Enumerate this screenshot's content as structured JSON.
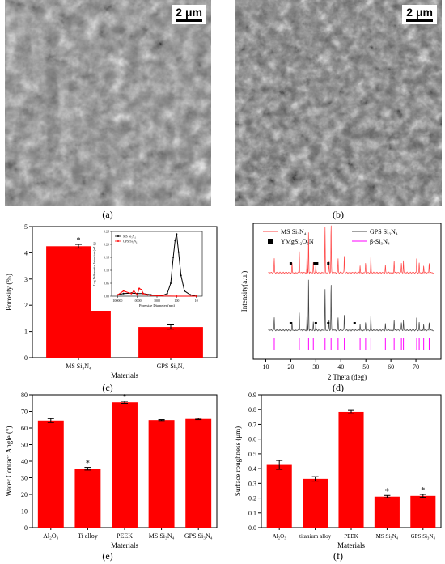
{
  "panels": {
    "a": {
      "label": "(a)",
      "scale_bar": "2 μm"
    },
    "b": {
      "label": "(b)",
      "scale_bar": "2 μm"
    },
    "c": {
      "label": "(c)"
    },
    "d": {
      "label": "(d)"
    },
    "e": {
      "label": "(e)"
    },
    "f": {
      "label": "(f)"
    }
  },
  "chart_data": [
    {
      "id": "c",
      "type": "bar",
      "categories": [
        "MS Si₃N₄",
        "GPS Si₃N₄"
      ],
      "values": [
        4.25,
        1.17
      ],
      "errors": [
        0.07,
        0.08
      ],
      "significance": [
        "*",
        ""
      ],
      "xlabel": "Materials",
      "ylabel": "Porosity (%)",
      "ylim": [
        0,
        5
      ],
      "yticks": [
        "0",
        "1",
        "2",
        "3",
        "4",
        "5"
      ],
      "color": "#ff0000",
      "inset": {
        "type": "line",
        "xlabel": "Pore size Diameter (nm)",
        "ylabel": "Log Differential Intrusion (mL/g)",
        "yticks": [
          "0.00",
          "0.05",
          "0.10",
          "0.15",
          "0.20",
          "0.25"
        ],
        "xticks": [
          "100000",
          "10000",
          "1000",
          "100",
          "10"
        ],
        "legend": [
          "MS Si₃N₄",
          "GPS Si₃N₄"
        ],
        "series": [
          {
            "name": "MS Si₃N₄",
            "color": "#000000",
            "x": [
              100000,
              50000,
              20000,
              10000,
              5000,
              2000,
              1000,
              500,
              300,
              200,
              150,
              120,
              100,
              80,
              60,
              40,
              20,
              10
            ],
            "y": [
              0.005,
              0.01,
              0.012,
              0.01,
              0.01,
              0.005,
              0.003,
              0.003,
              0.01,
              0.05,
              0.15,
              0.215,
              0.24,
              0.17,
              0.08,
              0.02,
              0.005,
              0.0
            ]
          },
          {
            "name": "GPS Si₃N₄",
            "color": "#ff0000",
            "x": [
              100000,
              50000,
              20000,
              15000,
              10000,
              8000,
              6000,
              5000,
              3000,
              2000,
              1000,
              500,
              100,
              10
            ],
            "y": [
              0.005,
              0.02,
              0.01,
              0.02,
              0.005,
              0.03,
              0.025,
              0.01,
              0.005,
              0.003,
              0.002,
              0.001,
              0.0,
              0.0
            ]
          }
        ]
      }
    },
    {
      "id": "d",
      "type": "line",
      "xlabel": "2 Theta (deg)",
      "ylabel": "Intensity(a.u.)",
      "xlim": [
        5,
        80
      ],
      "xticks": [
        "10",
        "20",
        "30",
        "40",
        "50",
        "60",
        "70"
      ],
      "legend": [
        "MS Si₃N₄",
        "GPS Si₃N₄",
        "YMgSi₂O₅N",
        "β-Si₃N₄"
      ],
      "series": [
        {
          "name": "MS Si₃N₄",
          "color": "#ff4444",
          "peaks": [
            [
              13.4,
              0.3
            ],
            [
              20.5,
              0.2
            ],
            [
              23.4,
              0.45
            ],
            [
              26.5,
              0.35
            ],
            [
              27.1,
              0.85
            ],
            [
              29.0,
              0.2
            ],
            [
              30.0,
              0.15
            ],
            [
              33.7,
              0.95
            ],
            [
              35.3,
              0.25
            ],
            [
              36.1,
              1.0
            ],
            [
              38.9,
              0.3
            ],
            [
              41.4,
              0.35
            ],
            [
              47.7,
              0.15
            ],
            [
              49.9,
              0.2
            ],
            [
              52.0,
              0.35
            ],
            [
              57.8,
              0.15
            ],
            [
              61.3,
              0.25
            ],
            [
              64.2,
              0.2
            ],
            [
              65.0,
              0.25
            ],
            [
              70.3,
              0.3
            ],
            [
              71.3,
              0.2
            ],
            [
              73.1,
              0.15
            ],
            [
              75.3,
              0.2
            ]
          ]
        },
        {
          "name": "GPS Si₃N₄",
          "color": "#444444",
          "peaks": [
            [
              13.4,
              0.25
            ],
            [
              20.5,
              0.15
            ],
            [
              23.4,
              0.35
            ],
            [
              26.5,
              0.3
            ],
            [
              27.1,
              1.0
            ],
            [
              29.0,
              0.15
            ],
            [
              30.0,
              0.12
            ],
            [
              33.7,
              0.8
            ],
            [
              35.3,
              0.2
            ],
            [
              36.1,
              0.9
            ],
            [
              38.9,
              0.25
            ],
            [
              41.4,
              0.3
            ],
            [
              47.7,
              0.12
            ],
            [
              49.9,
              0.15
            ],
            [
              52.0,
              0.3
            ],
            [
              57.8,
              0.12
            ],
            [
              61.3,
              0.2
            ],
            [
              64.2,
              0.15
            ],
            [
              65.0,
              0.2
            ],
            [
              70.3,
              0.25
            ],
            [
              71.3,
              0.15
            ],
            [
              73.1,
              0.12
            ],
            [
              75.3,
              0.15
            ]
          ]
        }
      ],
      "markers_ms": [
        20.0,
        29.5,
        30.5,
        35.0
      ],
      "markers_gps": [
        20.0,
        30.0,
        35.0,
        45.5
      ],
      "reference_beta": [
        13.4,
        23.4,
        26.5,
        27.1,
        29.0,
        33.7,
        36.1,
        38.9,
        41.4,
        47.7,
        49.9,
        52.0,
        57.8,
        61.3,
        64.2,
        65.0,
        70.3,
        71.3,
        73.1,
        75.3
      ]
    },
    {
      "id": "e",
      "type": "bar",
      "categories": [
        "Al₂O₃",
        "Ti alloy",
        "PEEK",
        "MS Si₃N₄",
        "GPS Si₃N₄"
      ],
      "values": [
        64.5,
        35.5,
        75.5,
        64.8,
        65.5
      ],
      "errors": [
        1.2,
        0.8,
        0.6,
        0.3,
        0.4
      ],
      "significance": [
        "",
        "*",
        "*",
        "",
        ""
      ],
      "xlabel": "Materials",
      "ylabel": "Water Contact Angle (°)",
      "ylim": [
        0,
        80
      ],
      "yticks": [
        "0",
        "10",
        "20",
        "30",
        "40",
        "50",
        "60",
        "70",
        "80"
      ],
      "color": "#ff0000"
    },
    {
      "id": "f",
      "type": "bar",
      "categories": [
        "Al₂O₃",
        "titanium alloy",
        "PEEK",
        "MS Si₃N₄",
        "GPS Si₃N₄"
      ],
      "values": [
        0.425,
        0.33,
        0.785,
        0.21,
        0.215
      ],
      "errors": [
        0.03,
        0.015,
        0.01,
        0.008,
        0.01
      ],
      "significance": [
        "",
        "",
        "",
        "*",
        "*"
      ],
      "xlabel": "Materials",
      "ylabel": "Surface roughness (μm)",
      "ylim": [
        0,
        0.9
      ],
      "yticks": [
        "0.0",
        "0.1",
        "0.2",
        "0.3",
        "0.4",
        "0.5",
        "0.6",
        "0.7",
        "0.8",
        "0.9"
      ],
      "color": "#ff0000"
    }
  ]
}
